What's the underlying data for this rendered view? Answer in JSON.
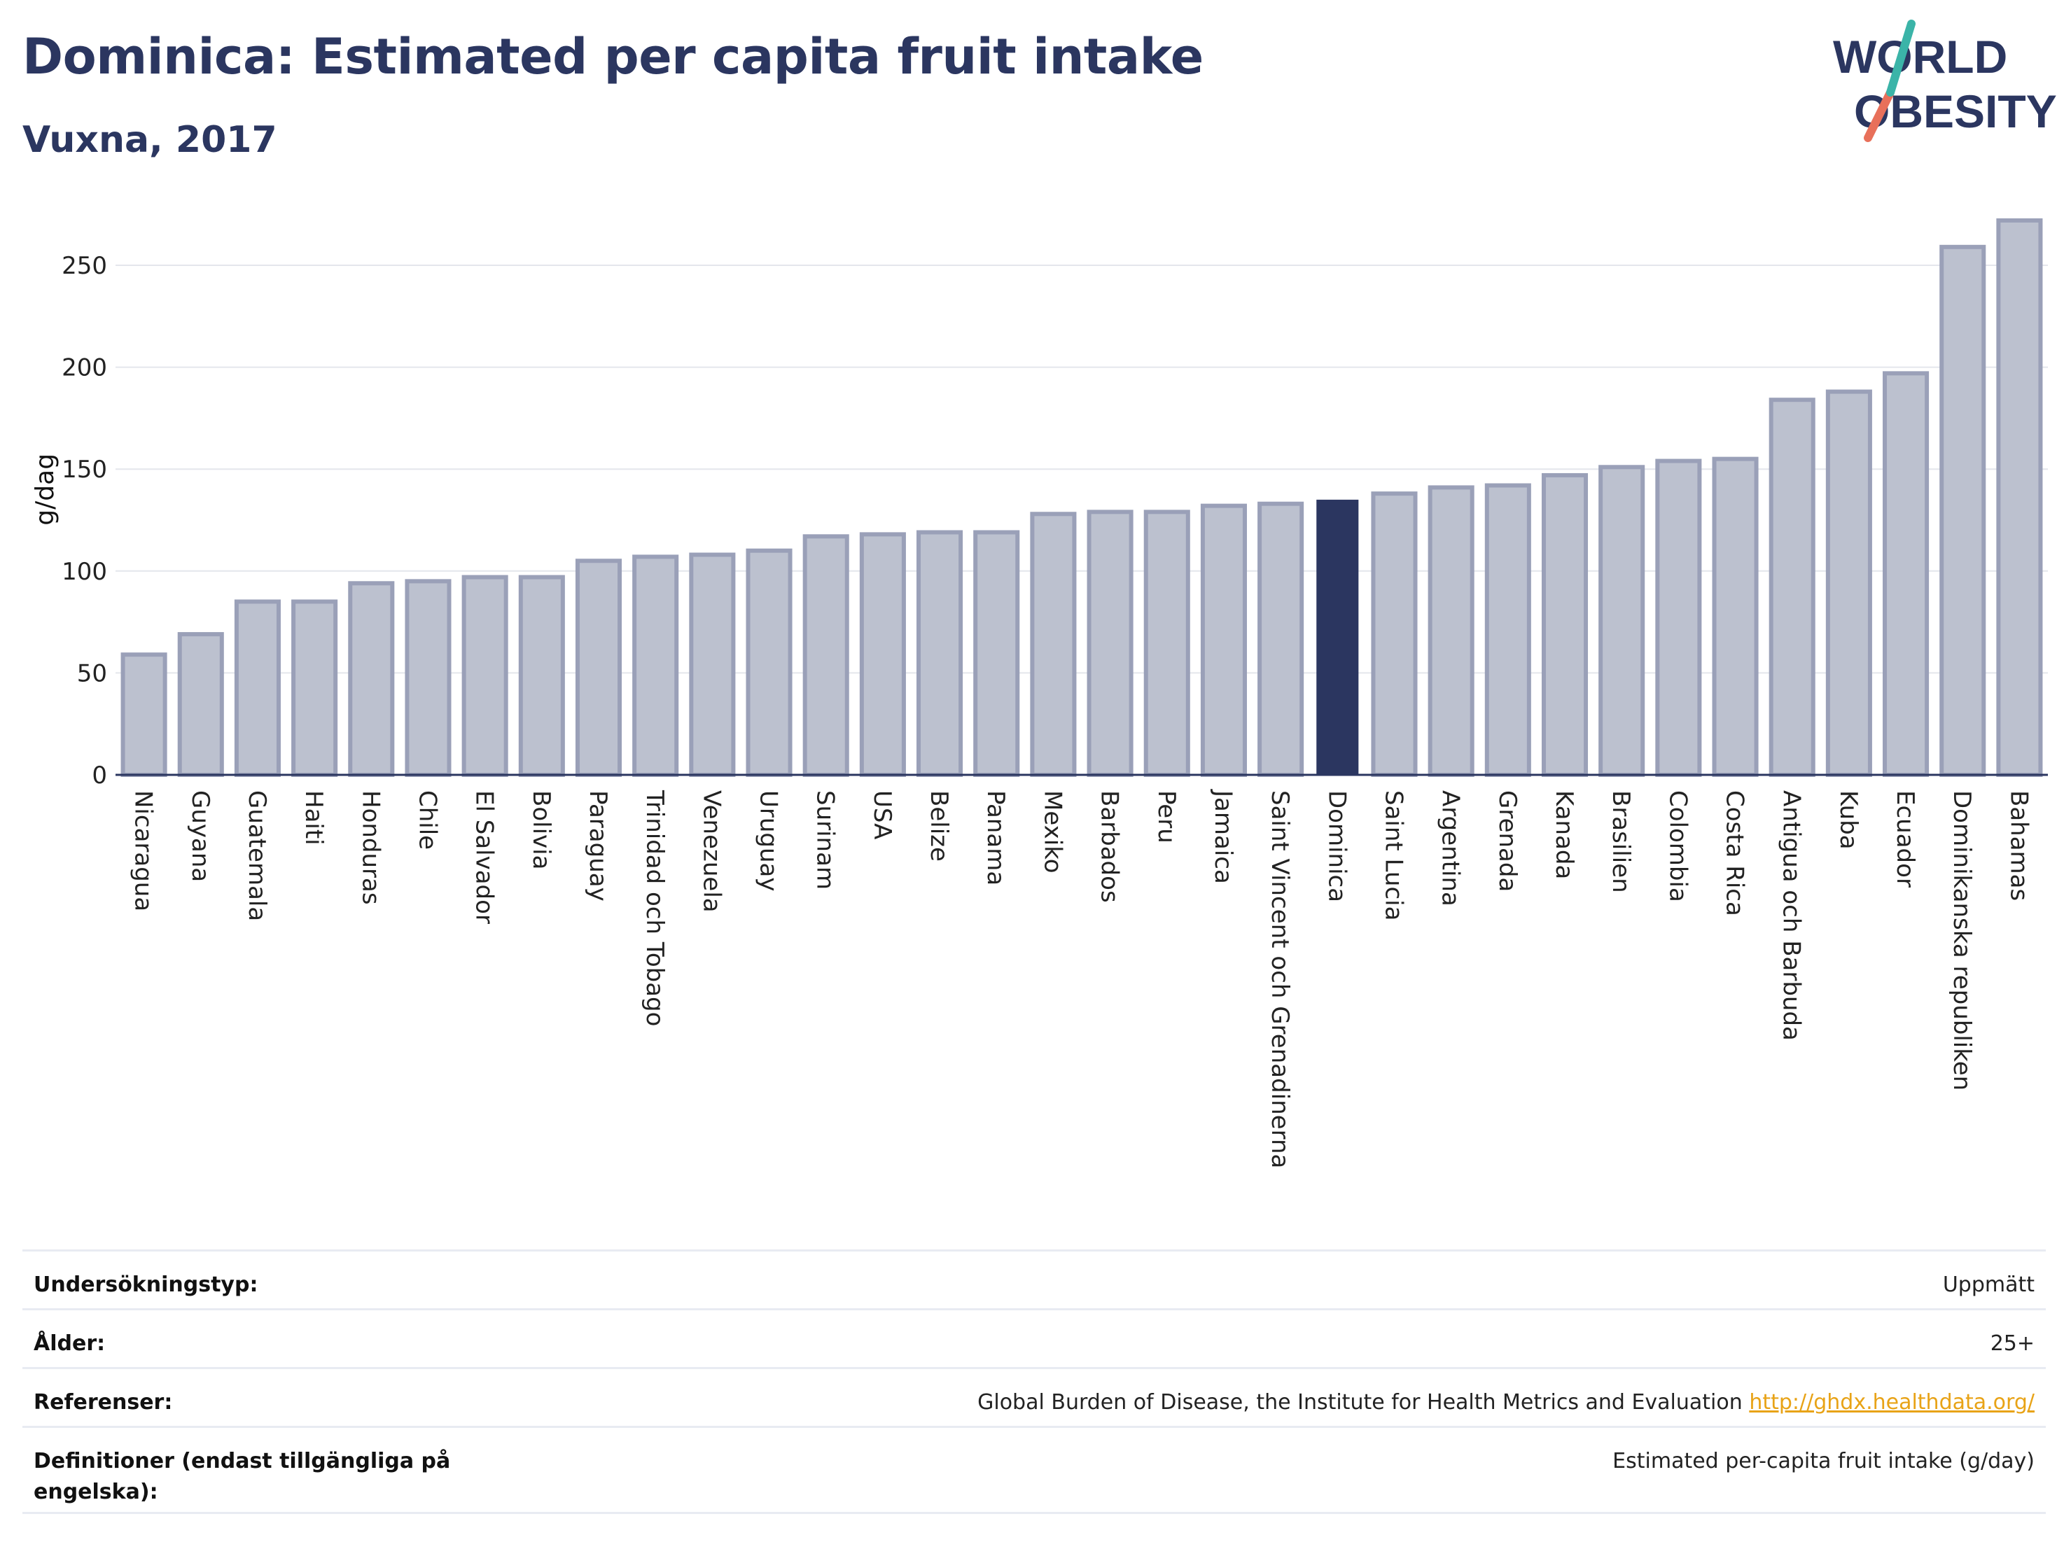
{
  "header": {
    "title": "Dominica: Estimated per capita fruit intake",
    "subtitle": "Vuxna, 2017"
  },
  "logo": {
    "line1": "WORLD",
    "line2": "OBESITY"
  },
  "colors": {
    "highlight": "#2b3660",
    "bar_fill": "#bcc1cf",
    "bar_stroke": "#9aa0b8",
    "text": "#2b3660",
    "link": "#e8a317"
  },
  "chart_data": {
    "type": "bar",
    "title": "Dominica: Estimated per capita fruit intake",
    "subtitle": "Vuxna, 2017",
    "xlabel": "",
    "ylabel": "g/dag",
    "ylim": [
      0,
      280
    ],
    "yticks": [
      0,
      50,
      100,
      150,
      200,
      250
    ],
    "grid": true,
    "highlight": "Dominica",
    "categories": [
      "Nicaragua",
      "Guyana",
      "Guatemala",
      "Haiti",
      "Honduras",
      "Chile",
      "El Salvador",
      "Bolivia",
      "Paraguay",
      "Trinidad och Tobago",
      "Venezuela",
      "Uruguay",
      "Surinam",
      "USA",
      "Belize",
      "Panama",
      "Mexiko",
      "Barbados",
      "Peru",
      "Jamaica",
      "Saint Vincent och Grenadinerna",
      "Dominica",
      "Saint Lucia",
      "Argentina",
      "Grenada",
      "Kanada",
      "Brasilien",
      "Colombia",
      "Costa Rica",
      "Antigua och Barbuda",
      "Kuba",
      "Ecuador",
      "Dominikanska republiken",
      "Bahamas"
    ],
    "values": [
      59,
      69,
      85,
      85,
      94,
      95,
      97,
      97,
      105,
      107,
      108,
      110,
      117,
      118,
      119,
      119,
      128,
      129,
      129,
      132,
      133,
      135,
      138,
      141,
      142,
      147,
      151,
      154,
      155,
      184,
      188,
      197,
      259,
      272
    ]
  },
  "meta": [
    {
      "label": "Undersökningstyp:",
      "value": "Uppmätt",
      "link": ""
    },
    {
      "label": "Ålder:",
      "value": "25+",
      "link": ""
    },
    {
      "label": "Referenser:",
      "value": "Global Burden of Disease, the Institute for Health Metrics and Evaluation",
      "link": "http://ghdx.healthdata.org/"
    },
    {
      "label": "Definitioner (endast tillgängliga på engelska):",
      "value": "Estimated per-capita fruit intake (g/day)",
      "link": ""
    }
  ]
}
